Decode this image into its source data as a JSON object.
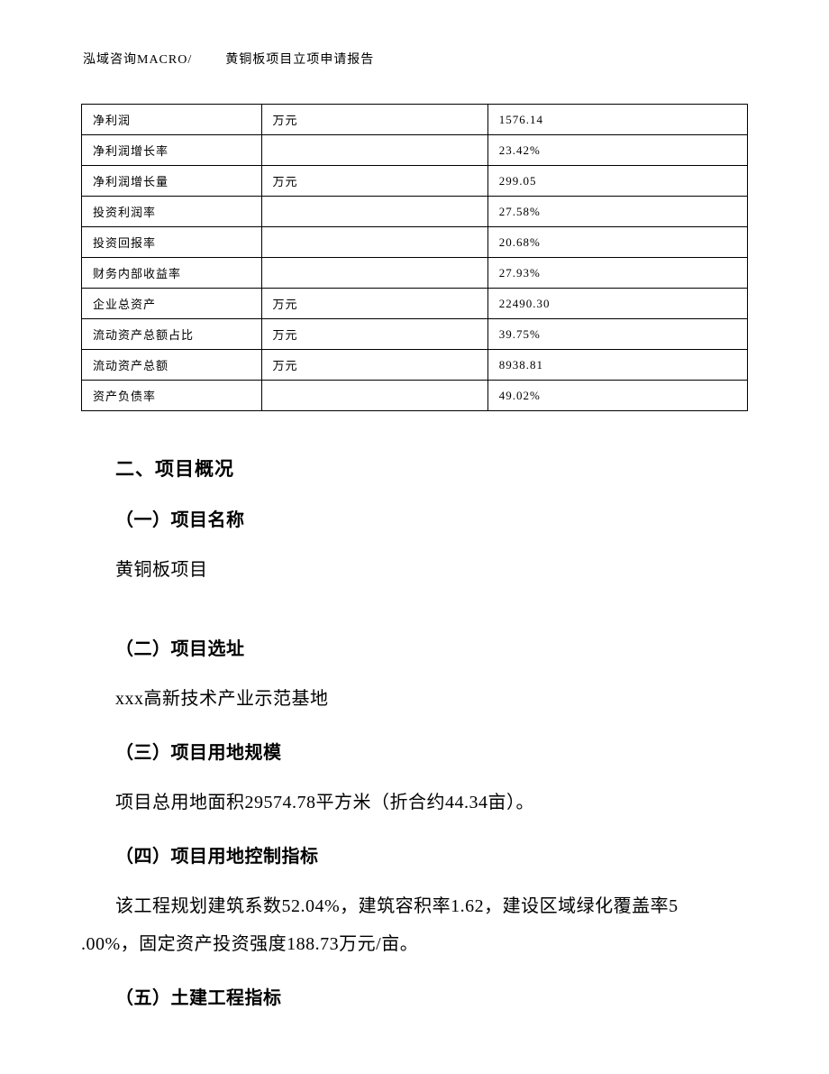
{
  "header": {
    "company": "泓域咨询MACRO/",
    "title": "黄铜板项目立项申请报告"
  },
  "table": {
    "rows": [
      {
        "label": "净利润",
        "unit": "万元",
        "value": "1576.14"
      },
      {
        "label": "净利润增长率",
        "unit": "",
        "value": "23.42%"
      },
      {
        "label": "净利润增长量",
        "unit": "万元",
        "value": "299.05"
      },
      {
        "label": "投资利润率",
        "unit": "",
        "value": "27.58%"
      },
      {
        "label": "投资回报率",
        "unit": "",
        "value": "20.68%"
      },
      {
        "label": "财务内部收益率",
        "unit": "",
        "value": "27.93%"
      },
      {
        "label": "企业总资产",
        "unit": "万元",
        "value": "22490.30"
      },
      {
        "label": "流动资产总额占比",
        "unit": "万元",
        "value": "39.75%"
      },
      {
        "label": "流动资产总额",
        "unit": "万元",
        "value": "8938.81"
      },
      {
        "label": "资产负债率",
        "unit": "",
        "value": "49.02%"
      }
    ]
  },
  "sections": {
    "main_title": "二、项目概况",
    "s1": {
      "title": "（一）项目名称",
      "text": "黄铜板项目"
    },
    "s2": {
      "title": "（二）项目选址",
      "text": "xxx高新技术产业示范基地"
    },
    "s3": {
      "title": "（三）项目用地规模",
      "text": "项目总用地面积29574.78平方米（折合约44.34亩）。"
    },
    "s4": {
      "title": "（四）项目用地控制指标",
      "text_line1": "该工程规划建筑系数52.04%，建筑容积率1.62，建设区域绿化覆盖率5",
      "text_line2": ".00%，固定资产投资强度188.73万元/亩。"
    },
    "s5": {
      "title": "（五）土建工程指标"
    }
  }
}
